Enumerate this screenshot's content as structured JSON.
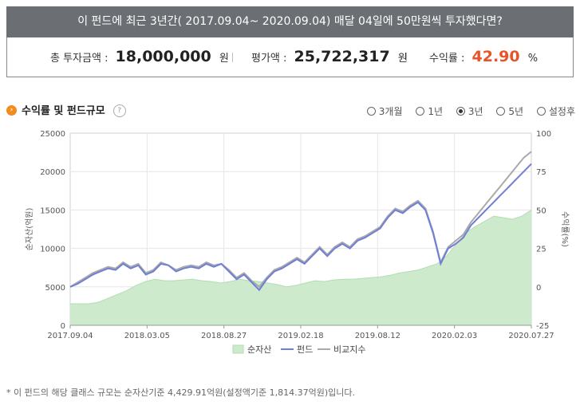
{
  "header": {
    "title": "이 펀드에 최근 3년간( 2017.09.04~ 2020.09.04) 매달 04일에 50만원씩 투자했다면?"
  },
  "summary": {
    "total_invest_label": "총 투자금액 :",
    "total_invest_value": "18,000,000",
    "total_invest_unit": "원",
    "eval_label": "평가액 :",
    "eval_value": "25,722,317",
    "eval_unit": "원",
    "return_label": "수익률 :",
    "return_value": "42.90",
    "return_unit": "%"
  },
  "section": {
    "title": "수익률 및 펀드규모",
    "help_icon": "question-icon",
    "help_glyph": "?",
    "bullet_glyph": "›"
  },
  "periods": [
    {
      "label": "3개월",
      "selected": false
    },
    {
      "label": "1년",
      "selected": false
    },
    {
      "label": "3년",
      "selected": true
    },
    {
      "label": "5년",
      "selected": false
    },
    {
      "label": "설정후",
      "selected": false
    }
  ],
  "chart_data": {
    "type": "area+line",
    "ylabel_left": "순자산(억원)",
    "ylabel_right": "수익률(%)",
    "left_axis": {
      "min": 0,
      "max": 25000,
      "ticks": [
        0,
        5000,
        10000,
        15000,
        20000,
        25000
      ]
    },
    "right_axis": {
      "min": -25,
      "max": 100,
      "ticks": [
        -25,
        0,
        25,
        50,
        75,
        100
      ]
    },
    "x_labels": [
      "2017.09.04",
      "2018.03.05",
      "2018.08.27",
      "2019.02.18",
      "2019.08.12",
      "2020.02.03",
      "2020.07.27"
    ],
    "grid": true,
    "legend_position": "bottom",
    "colors": {
      "net_assets": "#cdeacd",
      "net_assets_line": "#b3dcb3",
      "fund": "#6f7fd8",
      "benchmark": "#a9a9a9"
    },
    "series": [
      {
        "name": "순자산",
        "axis": "left",
        "values": [
          2800,
          2800,
          2800,
          3000,
          3500,
          4000,
          4500,
          5200,
          5700,
          6000,
          5800,
          5800,
          5900,
          6000,
          5800,
          5700,
          5500,
          5700,
          6000,
          5800,
          5700,
          5500,
          5300,
          5000,
          5200,
          5500,
          5800,
          5700,
          5900,
          6000,
          6000,
          6100,
          6200,
          6300,
          6500,
          6800,
          7000,
          7200,
          7600,
          8000,
          9000,
          10500,
          12000,
          12800,
          13500,
          14200,
          14000,
          13800,
          14200,
          15000
        ]
      },
      {
        "name": "펀드",
        "axis": "right",
        "values": [
          0,
          2,
          5,
          8,
          10,
          12,
          11,
          15,
          12,
          14,
          8,
          10,
          15,
          14,
          10,
          12,
          13,
          12,
          15,
          13,
          15,
          10,
          5,
          8,
          3,
          -2,
          5,
          10,
          12,
          15,
          18,
          15,
          20,
          25,
          20,
          25,
          28,
          25,
          30,
          32,
          35,
          38,
          45,
          50,
          48,
          52,
          55,
          50,
          35,
          15,
          25,
          28,
          32,
          40,
          45,
          50,
          55,
          60,
          65,
          70,
          75,
          80
        ]
      },
      {
        "name": "비교지수",
        "axis": "right",
        "values": [
          0,
          3,
          6,
          9,
          11,
          13,
          12,
          16,
          13,
          15,
          9,
          11,
          16,
          14,
          11,
          13,
          14,
          13,
          16,
          14,
          15,
          11,
          6,
          9,
          4,
          0,
          6,
          11,
          13,
          16,
          19,
          16,
          21,
          26,
          21,
          26,
          29,
          26,
          31,
          33,
          36,
          39,
          46,
          51,
          49,
          53,
          56,
          51,
          36,
          16,
          26,
          30,
          34,
          42,
          48,
          54,
          60,
          66,
          72,
          78,
          84,
          88
        ]
      }
    ]
  },
  "footnote": "* 이 펀드의 해당 클래스 규모는 순자산기준 4,429.91억원(설정액기준 1,814.37억원)입니다."
}
